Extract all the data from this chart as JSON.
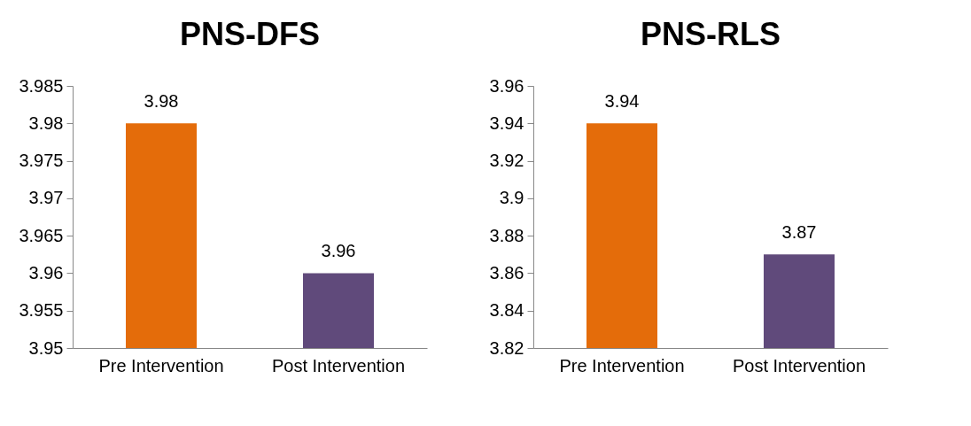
{
  "chart_data": [
    {
      "type": "bar",
      "title": "PNS-DFS",
      "categories": [
        "Pre Intervention",
        "Post Intervention"
      ],
      "values": [
        3.98,
        3.96
      ],
      "colors": [
        "#e46c0a",
        "#604a7b"
      ],
      "ylim": [
        3.95,
        3.985
      ],
      "yticks": [
        3.95,
        3.955,
        3.96,
        3.965,
        3.97,
        3.975,
        3.98,
        3.985
      ],
      "data_labels": true
    },
    {
      "type": "bar",
      "title": "PNS-RLS",
      "categories": [
        "Pre Intervention",
        "Post Intervention"
      ],
      "values": [
        3.94,
        3.87
      ],
      "colors": [
        "#e46c0a",
        "#604a7b"
      ],
      "ylim": [
        3.82,
        3.96
      ],
      "yticks": [
        3.82,
        3.84,
        3.86,
        3.88,
        3.9,
        3.92,
        3.94,
        3.96
      ],
      "data_labels": true
    }
  ]
}
